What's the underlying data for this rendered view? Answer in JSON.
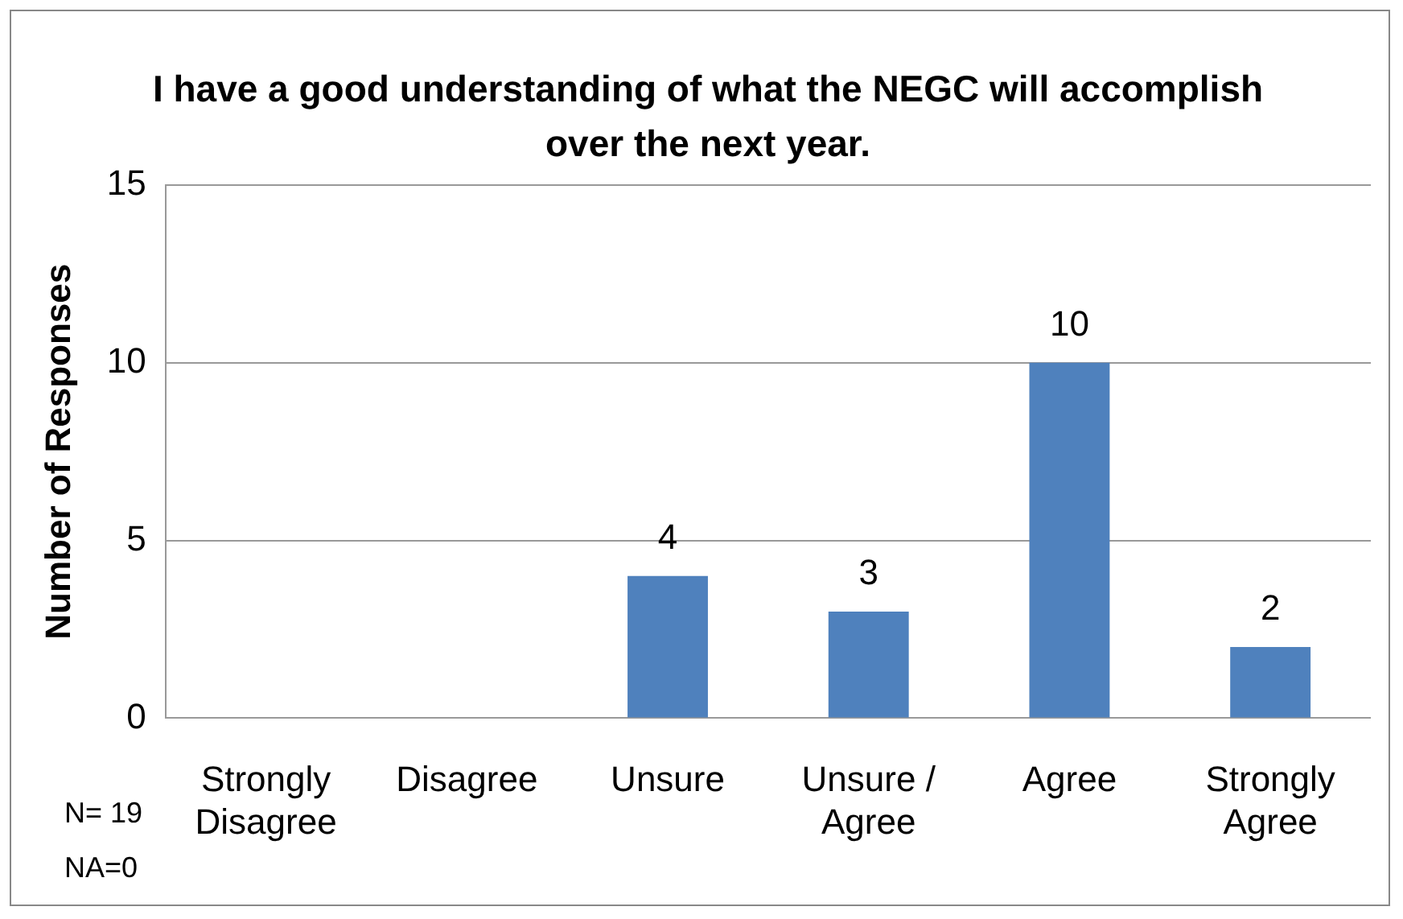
{
  "chart_data": {
    "type": "bar",
    "title": "I have a good understanding of what the NEGC will accomplish over the next year.",
    "ylabel": "Number of Responses",
    "categories": [
      "Strongly Disagree",
      "Disagree",
      "Unsure",
      "Unsure / Agree",
      "Agree",
      "Strongly Agree"
    ],
    "values": [
      0,
      0,
      4,
      3,
      10,
      2
    ],
    "color": "#4f81bd",
    "value_labels": [
      null,
      null,
      "4",
      "3",
      "10",
      "2"
    ],
    "ylim": [
      0,
      15
    ],
    "yticks": [
      0,
      5,
      10,
      15
    ],
    "grid": "y",
    "legend": false,
    "annotations": [
      "N= 19",
      "NA=0"
    ]
  }
}
